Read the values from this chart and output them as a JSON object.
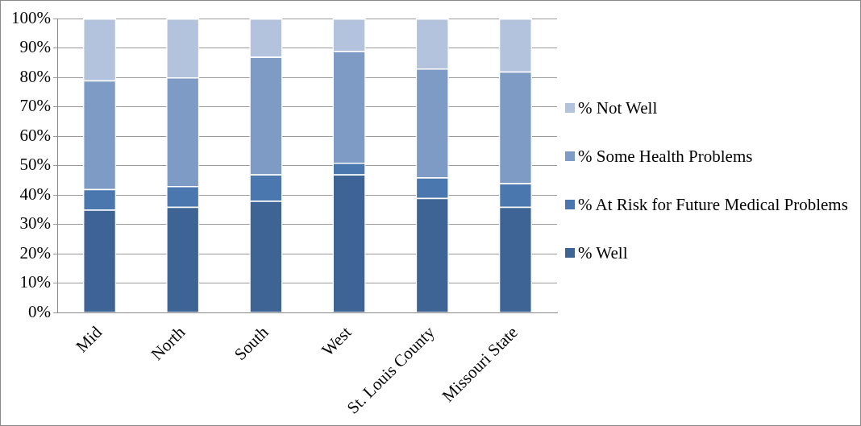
{
  "chart_data": {
    "type": "bar",
    "stacked": true,
    "categories": [
      "Mid",
      "North",
      "South",
      "West",
      "St. Louis County",
      "Missouri State"
    ],
    "series": [
      {
        "name": "% Well",
        "color": "#3d6495",
        "values": [
          35,
          36,
          38,
          47,
          39,
          36
        ]
      },
      {
        "name": "% At Risk for Future Medical Problems",
        "color": "#4a77ae",
        "values": [
          7,
          7,
          9,
          4,
          7,
          8
        ]
      },
      {
        "name": "% Some Health Problems",
        "color": "#7e9bc6",
        "values": [
          37,
          37,
          40,
          38,
          37,
          38
        ]
      },
      {
        "name": "% Not Well",
        "color": "#b3c2dd",
        "values": [
          21,
          20,
          13,
          11,
          17,
          18
        ]
      }
    ],
    "ylim": [
      0,
      100
    ],
    "yticks": [
      {
        "value": 0,
        "label": "0%"
      },
      {
        "value": 10,
        "label": "10%"
      },
      {
        "value": 20,
        "label": "20%"
      },
      {
        "value": 30,
        "label": "30%"
      },
      {
        "value": 40,
        "label": "40%"
      },
      {
        "value": 50,
        "label": "50%"
      },
      {
        "value": 60,
        "label": "60%"
      },
      {
        "value": 70,
        "label": "70%"
      },
      {
        "value": 80,
        "label": "80%"
      },
      {
        "value": 90,
        "label": "90%"
      },
      {
        "value": 100,
        "label": "100%"
      }
    ],
    "grid": "y",
    "legend": "right"
  }
}
